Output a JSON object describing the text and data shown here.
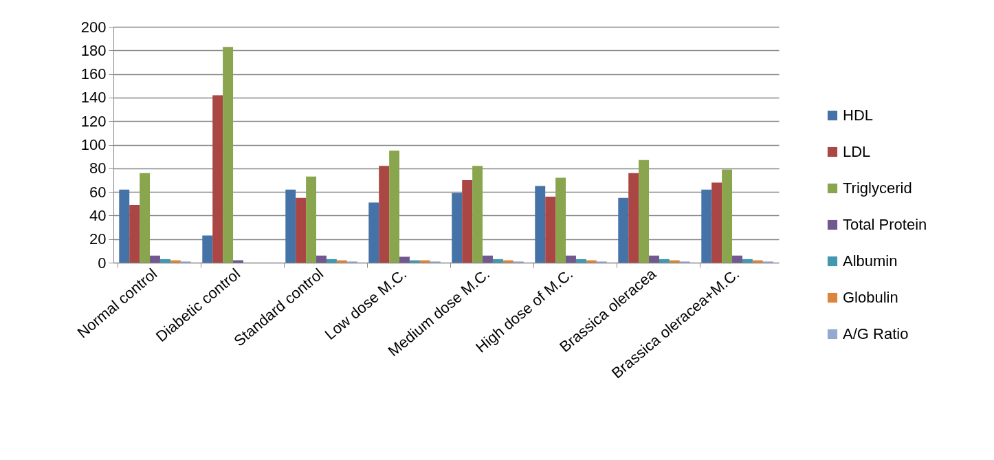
{
  "chart_data": {
    "type": "bar",
    "categories": [
      "Normal control",
      "Diabetic control",
      "Standard control",
      "Low dose M.C.",
      "Medium dose M.C.",
      "High dose of M.C.",
      "Brassica oleracea",
      "Brassica oleracea+M.C."
    ],
    "series": [
      {
        "name": "HDL",
        "color": "#4572a7",
        "values": [
          62,
          23,
          62,
          51,
          59,
          65,
          55,
          62
        ]
      },
      {
        "name": "LDL",
        "color": "#aa4643",
        "values": [
          49,
          142,
          55,
          82,
          70,
          56,
          76,
          68
        ]
      },
      {
        "name": "Triglycerid",
        "color": "#89a54e",
        "values": [
          76,
          183,
          73,
          95,
          82,
          72,
          87,
          79
        ]
      },
      {
        "name": "Total Protein",
        "color": "#71588f",
        "values": [
          6,
          2,
          6,
          5,
          6,
          6,
          6,
          6
        ]
      },
      {
        "name": "Albumin",
        "color": "#4198af",
        "values": [
          3,
          null,
          3,
          2,
          3,
          3,
          3,
          3
        ]
      },
      {
        "name": "Globulin",
        "color": "#db843d",
        "values": [
          2,
          null,
          2,
          2,
          2,
          2,
          2,
          2
        ]
      },
      {
        "name": "A/G Ratio",
        "color": "#93a9cf",
        "values": [
          1,
          null,
          1,
          1,
          1,
          1,
          1,
          1
        ]
      }
    ],
    "ylim": [
      0,
      200
    ],
    "yticks": [
      0,
      20,
      40,
      60,
      80,
      100,
      120,
      140,
      160,
      180,
      200
    ],
    "grid": "y",
    "legend": "right"
  }
}
